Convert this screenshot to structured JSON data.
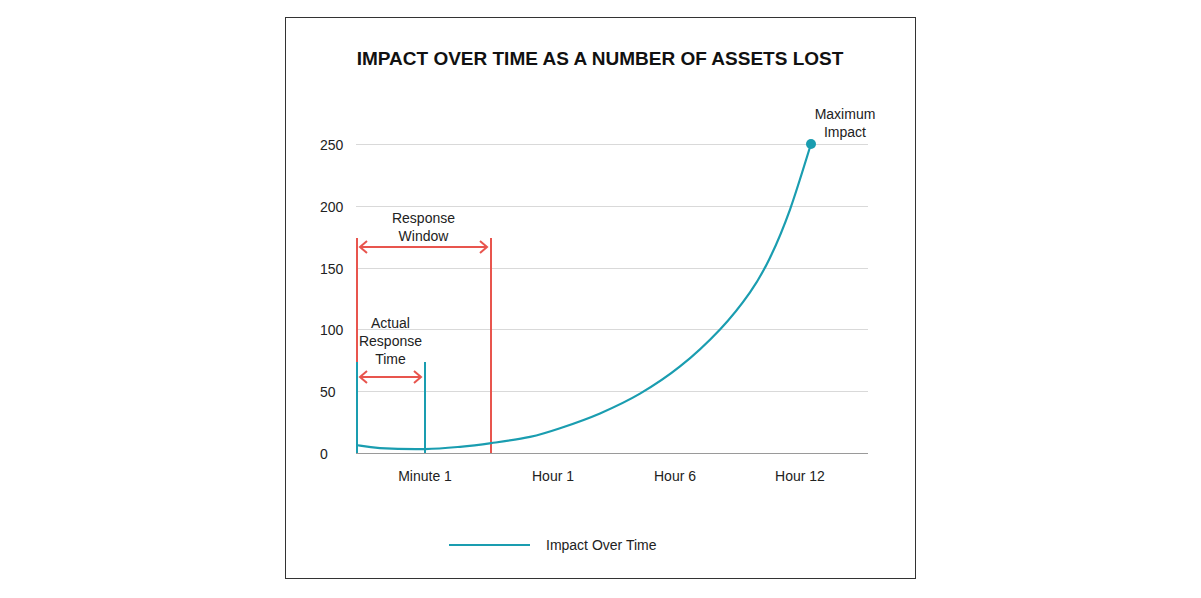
{
  "chart_data": {
    "type": "line",
    "title": "IMPACT OVER TIME AS A NUMBER OF ASSETS LOST",
    "x": [
      0.448,
      0.64,
      1.0,
      1.28,
      1.53,
      1.84,
      2.08,
      2.4,
      2.72,
      3.04,
      3.36,
      3.6,
      3.76,
      3.92,
      4.088
    ],
    "series": [
      {
        "name": "Impact Over Time",
        "color": "#1a9db0",
        "values": [
          6.5,
          4,
          3.2,
          5,
          8,
          13,
          20,
          32,
          48,
          70,
          100,
          130,
          158,
          197,
          250
        ]
      }
    ],
    "xlim": [
      0.448,
      4.544
    ],
    "xticks": [
      {
        "value": 1,
        "label": "Minute 1"
      },
      {
        "value": 2.024,
        "label": "Hour 1"
      },
      {
        "value": 3,
        "label": "Hour 6"
      },
      {
        "value": 4,
        "label": "Hour 12"
      }
    ],
    "ylim": [
      0,
      250
    ],
    "yticks": [
      0,
      50,
      100,
      150,
      200,
      250
    ],
    "grid": true,
    "legend": "bottom",
    "annotations": [
      {
        "text": "Response Window",
        "x_start": 0.448,
        "x_end": 1.528,
        "color": "#e8554e"
      },
      {
        "text": "Actual Response Time",
        "x_start": 0.448,
        "x_end": 1.0,
        "color": "#e8554e"
      },
      {
        "text": "Maximum Impact",
        "x": 4.088,
        "y": 250
      }
    ]
  }
}
